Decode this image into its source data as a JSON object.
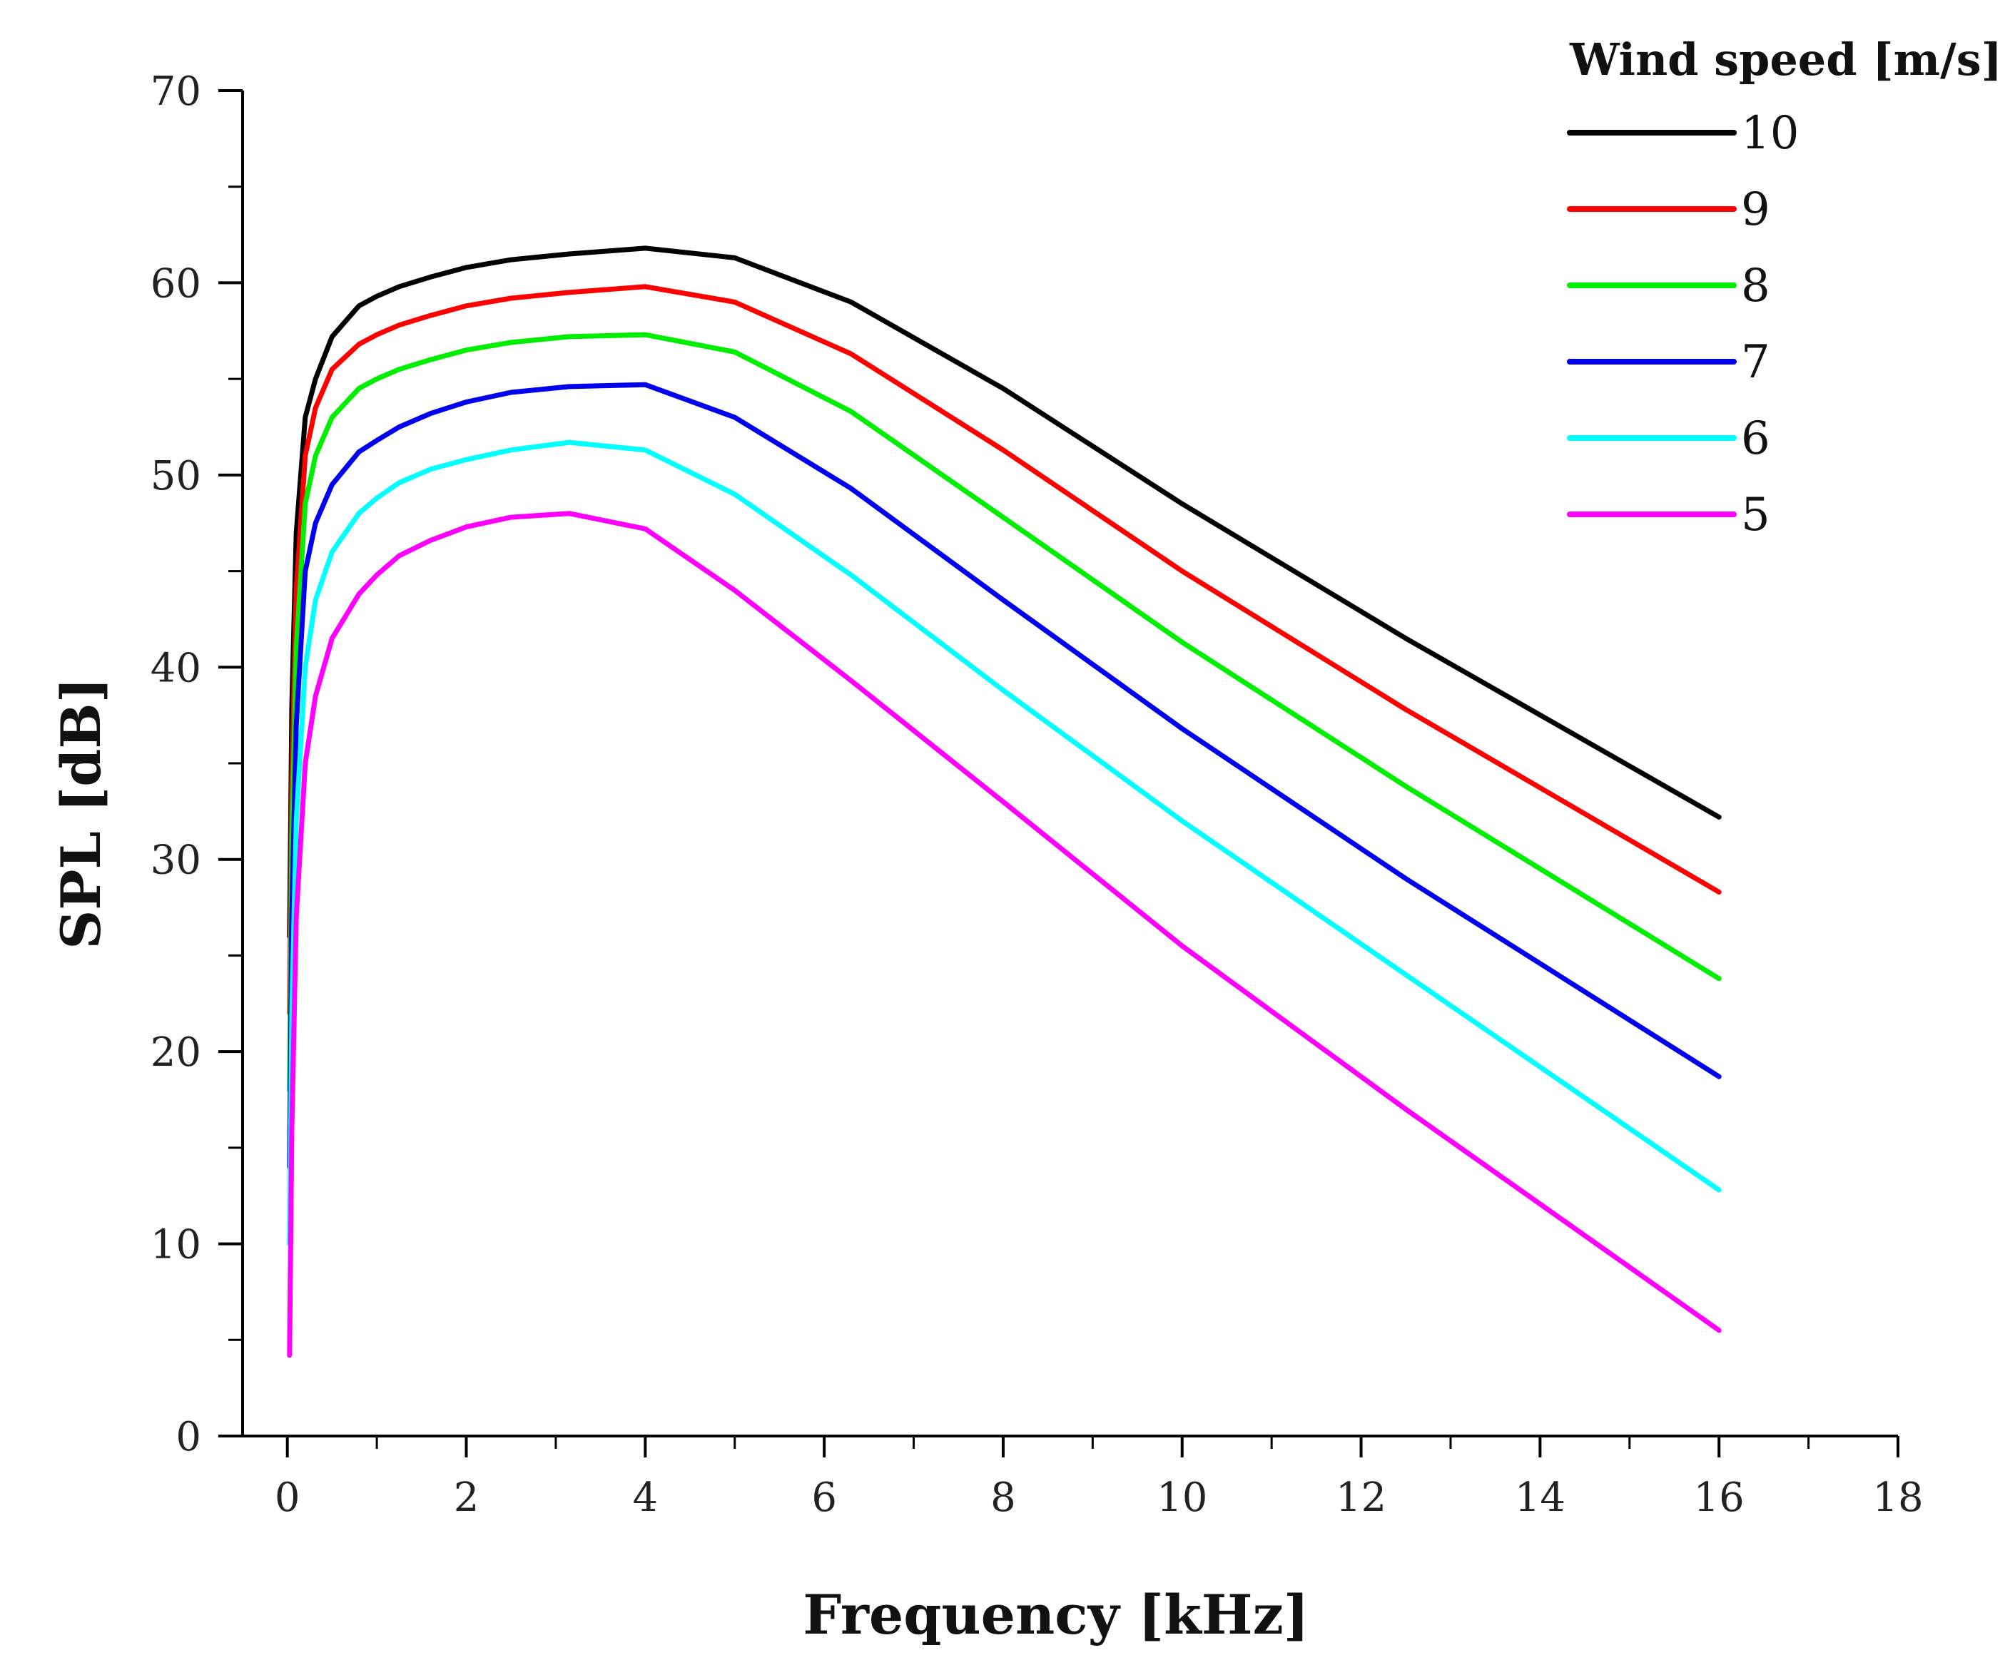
{
  "chart_data": {
    "type": "line",
    "title": "",
    "xlabel": "Frequency [kHz]",
    "ylabel": "SPL [dB]",
    "xlim": [
      -0.5,
      18
    ],
    "ylim": [
      0,
      70
    ],
    "x_ticks": [
      0,
      2,
      4,
      6,
      8,
      10,
      12,
      14,
      16,
      18
    ],
    "y_ticks": [
      0,
      10,
      20,
      30,
      40,
      50,
      60,
      70
    ],
    "x_tick_labels": [
      "0",
      "2",
      "4",
      "6",
      "8",
      "10",
      "12",
      "14",
      "16",
      "18"
    ],
    "y_tick_labels": [
      "0",
      "10",
      "20",
      "30",
      "40",
      "50",
      "60",
      "70"
    ],
    "grid": false,
    "legend": {
      "title": "Wind speed [m/s]",
      "placement": "top-right"
    },
    "x": [
      0.025,
      0.05,
      0.1,
      0.2,
      0.315,
      0.5,
      0.8,
      1.0,
      1.25,
      1.6,
      2.0,
      2.5,
      3.15,
      4.0,
      5.0,
      6.3,
      8.0,
      10.0,
      12.5,
      16.0
    ],
    "series": [
      {
        "name": "10",
        "color": "#000000",
        "values": [
          26,
          38,
          47,
          53,
          55,
          57.2,
          58.8,
          59.3,
          59.8,
          60.3,
          60.8,
          61.2,
          61.5,
          61.8,
          61.3,
          59.0,
          54.5,
          48.5,
          41.5,
          32.2
        ]
      },
      {
        "name": "9",
        "color": "#ff0000",
        "values": [
          22,
          34,
          44,
          51,
          53.5,
          55.5,
          56.8,
          57.3,
          57.8,
          58.3,
          58.8,
          59.2,
          59.5,
          59.8,
          59.0,
          56.3,
          51.3,
          45.0,
          37.8,
          28.3
        ]
      },
      {
        "name": "8",
        "color": "#00ee00",
        "values": [
          18,
          31,
          41,
          48.5,
          51.0,
          53.0,
          54.5,
          55.0,
          55.5,
          56.0,
          56.5,
          56.9,
          57.2,
          57.3,
          56.4,
          53.3,
          47.8,
          41.3,
          33.8,
          23.8
        ]
      },
      {
        "name": "7",
        "color": "#0000ee",
        "values": [
          14,
          27,
          37,
          45,
          47.5,
          49.5,
          51.2,
          51.8,
          52.5,
          53.2,
          53.8,
          54.3,
          54.6,
          54.7,
          53.0,
          49.3,
          43.5,
          36.8,
          29.0,
          18.7
        ]
      },
      {
        "name": "6",
        "color": "#00ffff",
        "values": [
          10,
          22,
          32,
          40,
          43.5,
          46.0,
          48.0,
          48.8,
          49.6,
          50.3,
          50.8,
          51.3,
          51.7,
          51.3,
          49.0,
          44.8,
          38.8,
          32.0,
          24.0,
          12.8
        ]
      },
      {
        "name": "5",
        "color": "#ff00ff",
        "values": [
          4.2,
          16,
          27,
          35,
          38.5,
          41.5,
          43.8,
          44.8,
          45.8,
          46.6,
          47.3,
          47.8,
          48.0,
          47.2,
          44.0,
          39.3,
          33.0,
          25.5,
          17.0,
          5.5
        ]
      }
    ]
  }
}
